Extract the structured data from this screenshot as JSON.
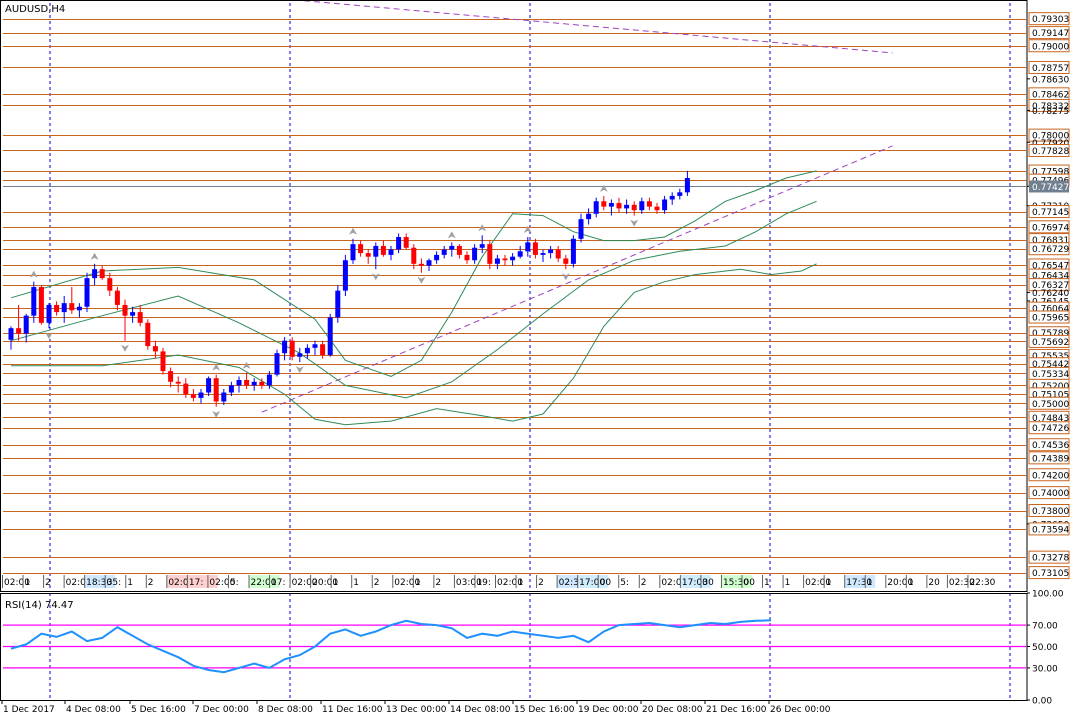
{
  "window": {
    "title": "AUDUSD,H4"
  },
  "colors": {
    "background": "#ffffff",
    "frame": "#000000",
    "grid": "#0000cc",
    "level_line": "#c8641e",
    "bull_candle": "#0000ff",
    "bear_candle": "#ff0000",
    "bollinger": "#2e8b57",
    "trendline": "#a040c0",
    "fractal": "#a0a0a0",
    "rsi_line": "#1e90ff",
    "rsi_levels": "#ff00ff",
    "label_bg": "#ffffff",
    "label_border": "#c8641e"
  },
  "main_axis": {
    "labels": [
      "0.79303",
      "0.79147",
      "0.79000",
      "0.78757",
      "0.78630",
      "0.78462",
      "0.78332",
      "0.78275",
      "0.78000",
      "0.77920",
      "0.77828",
      "0.77598",
      "0.77496",
      "0.77427",
      "0.77210",
      "0.77145",
      "0.76974",
      "0.76831",
      "0.76729",
      "0.76547",
      "0.76434",
      "0.76327",
      "0.76240",
      "0.76145",
      "0.76064",
      "0.75965",
      "0.75789",
      "0.75692",
      "0.75535",
      "0.75442",
      "0.75334",
      "0.75200",
      "0.75105",
      "0.75000",
      "0.74843",
      "0.74726",
      "0.74536",
      "0.74389",
      "0.74200",
      "0.74000",
      "0.73800",
      "0.73650",
      "0.73594",
      "0.73278",
      "0.73105"
    ]
  },
  "levels": [
    "0.79303",
    "0.79147",
    "0.79000",
    "0.78757",
    "0.78462",
    "0.78332",
    "0.78000",
    "0.77828",
    "0.77598",
    "0.77496",
    "0.77145",
    "0.76974",
    "0.76831",
    "0.76729",
    "0.76547",
    "0.76434",
    "0.76327",
    "0.76064",
    "0.75965",
    "0.75789",
    "0.75692",
    "0.75535",
    "0.75442",
    "0.75334",
    "0.75200",
    "0.75105",
    "0.75000",
    "0.74843",
    "0.74726",
    "0.74536",
    "0.74389",
    "0.74200",
    "0.74000",
    "0.73800",
    "0.73594",
    "0.73278",
    "0.73105"
  ],
  "current_price": "0.77427",
  "time_labels_row": [
    "02:00",
    "1",
    "2",
    "02:00",
    "18:30",
    "35:",
    "1",
    "2",
    "02:00",
    "17:",
    "02:00",
    "5:",
    "22:00",
    "17:",
    "02:00",
    "20:00",
    "1",
    "1",
    "2",
    "02:00",
    "1",
    "2",
    "03:00",
    "19:",
    "02:00",
    "1",
    "2",
    "02:30",
    "17:00",
    "00",
    "5:",
    "2",
    "02:00",
    "17:00",
    "30",
    "15:30",
    "00",
    "1",
    "1",
    "02:00",
    "1",
    "17:30",
    "1",
    "20:00",
    "1",
    "20",
    "02:30",
    "22:30"
  ],
  "rsi": {
    "title": "RSI(14) 74.47",
    "axis": [
      "100.00",
      "70.00",
      "50.00",
      "30.00",
      "0.00"
    ],
    "levels": [
      70,
      50,
      30
    ]
  },
  "x_axis": {
    "labels": [
      "1 Dec 2017",
      "4 Dec 08:00",
      "5 Dec 16:00",
      "7 Dec 00:00",
      "8 Dec 08:00",
      "11 Dec 16:00",
      "13 Dec 00:00",
      "14 Dec 08:00",
      "15 Dec 16:00",
      "19 Dec 00:00",
      "20 Dec 08:00",
      "21 Dec 16:00",
      "26 Dec 00:00"
    ]
  },
  "chart_data": {
    "type": "candlestick",
    "symbol": "AUDUSD",
    "timeframe": "H4",
    "candles": [
      [
        0.7571,
        0.7586,
        0.756,
        0.7584
      ],
      [
        0.7584,
        0.761,
        0.757,
        0.7578
      ],
      [
        0.7578,
        0.76,
        0.7568,
        0.7598
      ],
      [
        0.7598,
        0.7636,
        0.759,
        0.763
      ],
      [
        0.763,
        0.7632,
        0.7588,
        0.759
      ],
      [
        0.759,
        0.7612,
        0.7584,
        0.761
      ],
      [
        0.761,
        0.7614,
        0.7598,
        0.7602
      ],
      [
        0.7602,
        0.762,
        0.759,
        0.7612
      ],
      [
        0.7612,
        0.763,
        0.76,
        0.7604
      ],
      [
        0.7604,
        0.7612,
        0.7596,
        0.7608
      ],
      [
        0.7608,
        0.7646,
        0.7602,
        0.764
      ],
      [
        0.764,
        0.7656,
        0.7632,
        0.765
      ],
      [
        0.765,
        0.7654,
        0.7638,
        0.764
      ],
      [
        0.764,
        0.7646,
        0.762,
        0.7626
      ],
      [
        0.7626,
        0.763,
        0.7604,
        0.761
      ],
      [
        0.761,
        0.7616,
        0.757,
        0.7598
      ],
      [
        0.7598,
        0.7608,
        0.759,
        0.7602
      ],
      [
        0.7602,
        0.761,
        0.7586,
        0.759
      ],
      [
        0.759,
        0.7594,
        0.756,
        0.7564
      ],
      [
        0.7564,
        0.757,
        0.755,
        0.7558
      ],
      [
        0.7558,
        0.7562,
        0.7532,
        0.7536
      ],
      [
        0.7536,
        0.754,
        0.7518,
        0.7524
      ],
      [
        0.7524,
        0.753,
        0.7512,
        0.7522
      ],
      [
        0.7522,
        0.7528,
        0.7506,
        0.751
      ],
      [
        0.751,
        0.7516,
        0.7502,
        0.7506
      ],
      [
        0.7506,
        0.7516,
        0.75,
        0.7512
      ],
      [
        0.7512,
        0.753,
        0.7508,
        0.7528
      ],
      [
        0.7528,
        0.7532,
        0.7496,
        0.7502
      ],
      [
        0.7502,
        0.7516,
        0.7498,
        0.7512
      ],
      [
        0.7512,
        0.7524,
        0.7508,
        0.752
      ],
      [
        0.752,
        0.753,
        0.7512,
        0.7526
      ],
      [
        0.7526,
        0.7534,
        0.7516,
        0.752
      ],
      [
        0.752,
        0.7528,
        0.7514,
        0.7524
      ],
      [
        0.7524,
        0.7528,
        0.7516,
        0.752
      ],
      [
        0.752,
        0.7536,
        0.7516,
        0.7532
      ],
      [
        0.7532,
        0.756,
        0.753,
        0.7556
      ],
      [
        0.7556,
        0.7574,
        0.7548,
        0.757
      ],
      [
        0.757,
        0.7574,
        0.7548,
        0.7552
      ],
      [
        0.7552,
        0.7562,
        0.7546,
        0.7556
      ],
      [
        0.7556,
        0.7566,
        0.755,
        0.7562
      ],
      [
        0.7562,
        0.757,
        0.7554,
        0.7566
      ],
      [
        0.7566,
        0.757,
        0.755,
        0.7554
      ],
      [
        0.7554,
        0.76,
        0.7552,
        0.7596
      ],
      [
        0.7596,
        0.7632,
        0.759,
        0.7626
      ],
      [
        0.7626,
        0.7666,
        0.762,
        0.766
      ],
      [
        0.766,
        0.7684,
        0.7656,
        0.7678
      ],
      [
        0.7678,
        0.7682,
        0.7664,
        0.7668
      ],
      [
        0.7668,
        0.7672,
        0.7656,
        0.7664
      ],
      [
        0.7664,
        0.768,
        0.765,
        0.7676
      ],
      [
        0.7676,
        0.7682,
        0.7664,
        0.7666
      ],
      [
        0.7666,
        0.7676,
        0.766,
        0.7672
      ],
      [
        0.7672,
        0.769,
        0.7668,
        0.7686
      ],
      [
        0.7686,
        0.769,
        0.7672,
        0.7674
      ],
      [
        0.7674,
        0.7678,
        0.765,
        0.7656
      ],
      [
        0.7656,
        0.7662,
        0.7646,
        0.7654
      ],
      [
        0.7654,
        0.7662,
        0.7648,
        0.766
      ],
      [
        0.766,
        0.767,
        0.7656,
        0.7666
      ],
      [
        0.7666,
        0.7676,
        0.7662,
        0.7672
      ],
      [
        0.7672,
        0.768,
        0.7664,
        0.7676
      ],
      [
        0.7676,
        0.7678,
        0.7662,
        0.7666
      ],
      [
        0.7666,
        0.767,
        0.7656,
        0.766
      ],
      [
        0.766,
        0.7678,
        0.7656,
        0.7674
      ],
      [
        0.7674,
        0.7688,
        0.7668,
        0.7678
      ],
      [
        0.7678,
        0.7682,
        0.765,
        0.7656
      ],
      [
        0.7656,
        0.7666,
        0.765,
        0.7662
      ],
      [
        0.7662,
        0.7666,
        0.7654,
        0.766
      ],
      [
        0.766,
        0.7668,
        0.7654,
        0.7664
      ],
      [
        0.7664,
        0.7676,
        0.7662,
        0.767
      ],
      [
        0.767,
        0.7686,
        0.7664,
        0.768
      ],
      [
        0.768,
        0.7684,
        0.7662,
        0.7666
      ],
      [
        0.7666,
        0.7672,
        0.7658,
        0.7668
      ],
      [
        0.7668,
        0.7676,
        0.7662,
        0.7672
      ],
      [
        0.7672,
        0.7676,
        0.7658,
        0.7662
      ],
      [
        0.7662,
        0.7666,
        0.765,
        0.7656
      ],
      [
        0.7656,
        0.7688,
        0.7652,
        0.7684
      ],
      [
        0.7684,
        0.7712,
        0.768,
        0.7706
      ],
      [
        0.7706,
        0.7718,
        0.77,
        0.7712
      ],
      [
        0.7712,
        0.773,
        0.7708,
        0.7726
      ],
      [
        0.7726,
        0.7732,
        0.7716,
        0.772
      ],
      [
        0.772,
        0.7728,
        0.771,
        0.7724
      ],
      [
        0.7724,
        0.773,
        0.7714,
        0.7718
      ],
      [
        0.7718,
        0.7728,
        0.7712,
        0.7722
      ],
      [
        0.7722,
        0.7726,
        0.771,
        0.7716
      ],
      [
        0.7716,
        0.773,
        0.7712,
        0.7726
      ],
      [
        0.7726,
        0.773,
        0.7716,
        0.772
      ],
      [
        0.772,
        0.7724,
        0.7712,
        0.7716
      ],
      [
        0.7716,
        0.7732,
        0.7712,
        0.7728
      ],
      [
        0.7728,
        0.7736,
        0.7722,
        0.7732
      ],
      [
        0.7732,
        0.774,
        0.7728,
        0.7736
      ],
      [
        0.7736,
        0.776,
        0.7732,
        0.7752
      ]
    ],
    "bollinger_upper": [
      [
        0,
        0.7618
      ],
      [
        12,
        0.7648
      ],
      [
        22,
        0.7652
      ],
      [
        32,
        0.7638
      ],
      [
        40,
        0.7594
      ],
      [
        44,
        0.7548
      ],
      [
        50,
        0.753
      ],
      [
        54,
        0.7548
      ],
      [
        58,
        0.7602
      ],
      [
        62,
        0.7664
      ],
      [
        66,
        0.7712
      ],
      [
        70,
        0.771
      ],
      [
        74,
        0.7692
      ],
      [
        78,
        0.7682
      ],
      [
        82,
        0.7682
      ],
      [
        86,
        0.7686
      ],
      [
        90,
        0.7704
      ],
      [
        94,
        0.7726
      ],
      [
        98,
        0.7738
      ],
      [
        102,
        0.7752
      ],
      [
        106,
        0.776
      ]
    ],
    "bollinger_middle": [
      [
        0,
        0.757
      ],
      [
        12,
        0.7598
      ],
      [
        22,
        0.762
      ],
      [
        30,
        0.759
      ],
      [
        38,
        0.7556
      ],
      [
        44,
        0.752
      ],
      [
        52,
        0.7506
      ],
      [
        58,
        0.7524
      ],
      [
        64,
        0.756
      ],
      [
        70,
        0.76
      ],
      [
        76,
        0.7638
      ],
      [
        82,
        0.766
      ],
      [
        88,
        0.767
      ],
      [
        94,
        0.7676
      ],
      [
        98,
        0.7692
      ],
      [
        102,
        0.7712
      ],
      [
        106,
        0.7726
      ]
    ],
    "bollinger_lower": [
      [
        0,
        0.7542
      ],
      [
        12,
        0.7542
      ],
      [
        22,
        0.7554
      ],
      [
        30,
        0.754
      ],
      [
        36,
        0.751
      ],
      [
        40,
        0.7482
      ],
      [
        44,
        0.7476
      ],
      [
        50,
        0.748
      ],
      [
        56,
        0.7494
      ],
      [
        62,
        0.7486
      ],
      [
        66,
        0.748
      ],
      [
        70,
        0.7488
      ],
      [
        74,
        0.7528
      ],
      [
        78,
        0.7586
      ],
      [
        82,
        0.7624
      ],
      [
        86,
        0.7636
      ],
      [
        90,
        0.7644
      ],
      [
        96,
        0.765
      ],
      [
        100,
        0.7644
      ],
      [
        104,
        0.7648
      ],
      [
        106,
        0.7656
      ]
    ],
    "trendline_upper": [
      [
        -6,
        0.7984
      ],
      [
        116,
        0.7892
      ]
    ],
    "trendline_lower": [
      [
        33,
        0.749
      ],
      [
        116,
        0.7788
      ]
    ],
    "rsi_values": [
      [
        0,
        0.48
      ],
      [
        2,
        0.52
      ],
      [
        4,
        0.62
      ],
      [
        6,
        0.59
      ],
      [
        8,
        0.64
      ],
      [
        10,
        0.55
      ],
      [
        12,
        0.58
      ],
      [
        14,
        0.68
      ],
      [
        16,
        0.6
      ],
      [
        18,
        0.52
      ],
      [
        20,
        0.46
      ],
      [
        22,
        0.4
      ],
      [
        24,
        0.32
      ],
      [
        26,
        0.28
      ],
      [
        28,
        0.26
      ],
      [
        30,
        0.3
      ],
      [
        32,
        0.34
      ],
      [
        34,
        0.3
      ],
      [
        36,
        0.38
      ],
      [
        38,
        0.42
      ],
      [
        40,
        0.5
      ],
      [
        42,
        0.62
      ],
      [
        44,
        0.66
      ],
      [
        46,
        0.6
      ],
      [
        48,
        0.64
      ],
      [
        50,
        0.7
      ],
      [
        52,
        0.74
      ],
      [
        54,
        0.71
      ],
      [
        56,
        0.7
      ],
      [
        58,
        0.67
      ],
      [
        60,
        0.58
      ],
      [
        62,
        0.62
      ],
      [
        64,
        0.6
      ],
      [
        66,
        0.64
      ],
      [
        68,
        0.62
      ],
      [
        70,
        0.6
      ],
      [
        72,
        0.58
      ],
      [
        74,
        0.6
      ],
      [
        76,
        0.54
      ],
      [
        78,
        0.64
      ],
      [
        80,
        0.7
      ],
      [
        82,
        0.71
      ],
      [
        84,
        0.72
      ],
      [
        86,
        0.7
      ],
      [
        88,
        0.68
      ],
      [
        90,
        0.7
      ],
      [
        92,
        0.72
      ],
      [
        94,
        0.71
      ],
      [
        96,
        0.73
      ],
      [
        98,
        0.74
      ],
      [
        100,
        0.7447
      ]
    ]
  }
}
